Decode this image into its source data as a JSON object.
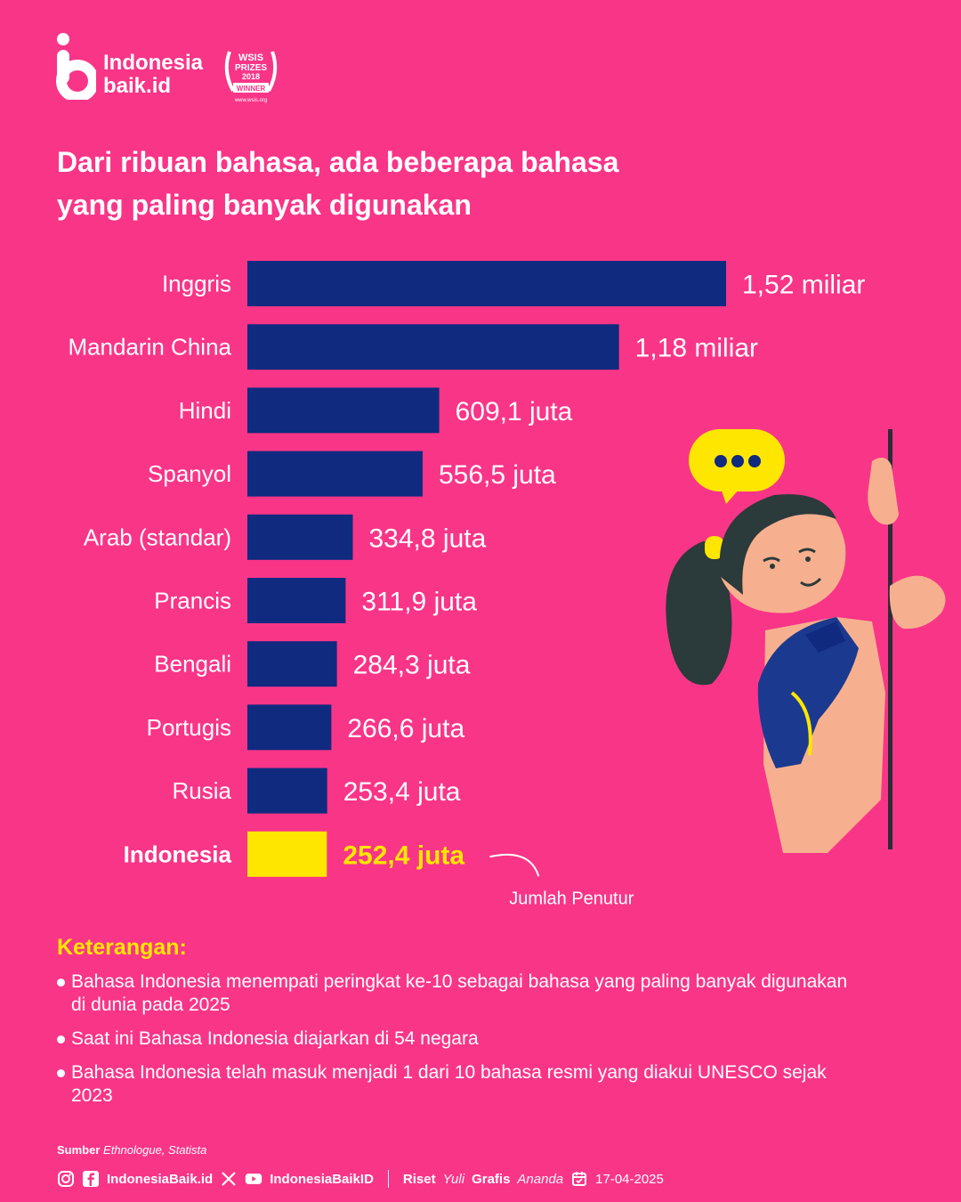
{
  "brand": {
    "name_line1": "Indonesia",
    "name_line2": "baik.id"
  },
  "award": {
    "line1": "WSIS",
    "line2": "PRIZES",
    "line3": "2018",
    "line4": "WINNER",
    "line5": "www.wsis.org"
  },
  "title_line1": "Dari ribuan bahasa, ada beberapa bahasa",
  "title_line2": "yang paling banyak digunakan",
  "chart_data": {
    "type": "bar",
    "orientation": "horizontal",
    "categories": [
      "Inggris",
      "Mandarin China",
      "Hindi",
      "Spanyol",
      "Arab (standar)",
      "Prancis",
      "Bengali",
      "Portugis",
      "Rusia",
      "Indonesia"
    ],
    "values": [
      1520,
      1180,
      609.1,
      556.5,
      334.8,
      311.9,
      284.3,
      266.6,
      253.4,
      252.4
    ],
    "unit": "juta",
    "data_labels": [
      "1,52 miliar",
      "1,18 miliar",
      "609,1 juta",
      "556,5 juta",
      "334,8 juta",
      "311,9 juta",
      "284,3 juta",
      "266,6 juta",
      "253,4 juta",
      "252,4 juta"
    ],
    "highlight": "Indonesia",
    "annotation": "Jumlah Penutur",
    "colors": {
      "bar": "#0f2a7f",
      "highlight": "#ffe600",
      "background": "#f93588",
      "label": "#ffffff"
    },
    "grid": false,
    "legend": "none"
  },
  "notes": {
    "title": "Keterangan:",
    "items": [
      "Bahasa Indonesia menempati peringkat ke-10 sebagai bahasa yang paling banyak digunakan di dunia pada 2025",
      "Saat ini Bahasa Indonesia diajarkan di 54 negara",
      "Bahasa Indonesia telah masuk menjadi 1 dari 10 bahasa resmi yang diakui UNESCO sejak 2023"
    ]
  },
  "source": {
    "label": "Sumber",
    "value": "Ethnologue, Statista"
  },
  "footer": {
    "handle1": "IndonesiaBaik.id",
    "handle2": "IndonesiaBaikID",
    "riset_label": "Riset",
    "riset_name": "Yuli",
    "grafis_label": "Grafis",
    "grafis_name": "Ananda",
    "date": "17-04-2025"
  },
  "icons": [
    "instagram-icon",
    "facebook-icon",
    "x-icon",
    "youtube-icon",
    "calendar-icon",
    "speech-bubble-icon"
  ]
}
